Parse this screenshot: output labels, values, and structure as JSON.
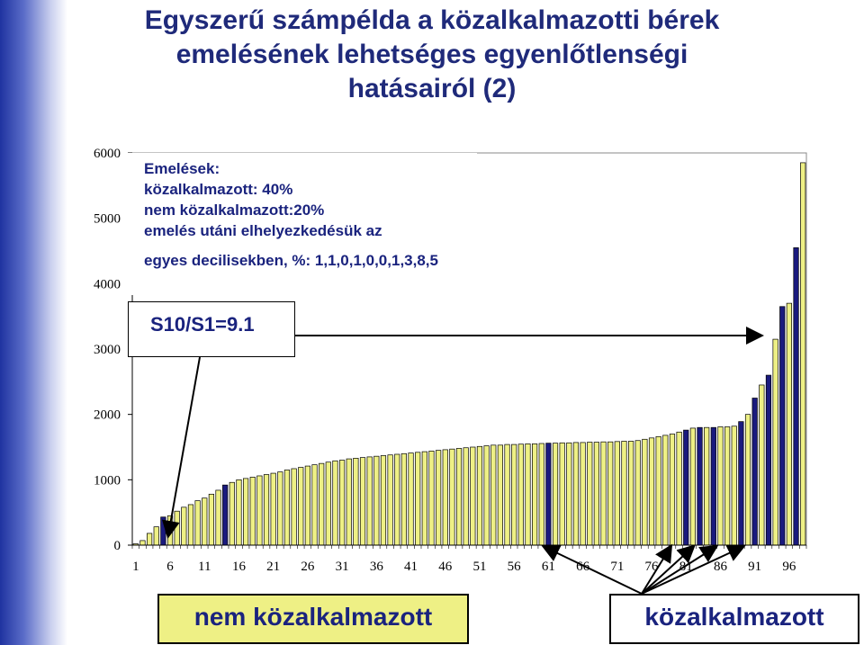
{
  "title_lines": [
    "Egyszerű számpélda a közalkalmazotti bérek",
    "emelésének lehetséges egyenlőtlenségi",
    "hatásairól (2)"
  ],
  "annotation_lines": [
    "Emelések:",
    "közalkalmazott: 40%",
    "nem közalkalmazott:20%",
    "emelés utáni elhelyezkedésük az",
    "egyes decilisekben, %: 1,1,0,1,0,0,1,3,8,5"
  ],
  "ratio_text": "S10/S1=9.1",
  "labels": {
    "non_public": "nem közalkalmazott",
    "public": "közalkalmazott"
  },
  "colors": {
    "non_public_fill": "#eef085",
    "public_fill": "#1a1a7e",
    "title": "#1f2a7a"
  },
  "chart_data": {
    "type": "bar",
    "yticks": [
      0,
      1000,
      2000,
      3000,
      4000,
      5000,
      6000
    ],
    "ylim": [
      0,
      6000
    ],
    "xtick_labels": [
      "1",
      "6",
      "11",
      "16",
      "21",
      "26",
      "31",
      "36",
      "41",
      "46",
      "51",
      "56",
      "61",
      "66",
      "71",
      "76",
      "81",
      "86",
      "91",
      "96"
    ],
    "series": [
      {
        "values": [
          20,
          70,
          180,
          280,
          430,
          450,
          520,
          580,
          620,
          680,
          720,
          780,
          840,
          920,
          960,
          1000,
          1020,
          1040,
          1060,
          1080,
          1100,
          1120,
          1150,
          1170,
          1190,
          1210,
          1230,
          1250,
          1270,
          1290,
          1300,
          1320,
          1330,
          1340,
          1350,
          1360,
          1370,
          1380,
          1390,
          1400,
          1410,
          1420,
          1430,
          1440,
          1450,
          1460,
          1470,
          1480,
          1490,
          1500,
          1510,
          1520,
          1530,
          1530,
          1540,
          1540,
          1545,
          1550,
          1550,
          1555,
          1560,
          1560,
          1565,
          1565,
          1570,
          1570,
          1575,
          1575,
          1580,
          1580,
          1585,
          1590,
          1590,
          1600,
          1620,
          1640,
          1660,
          1680,
          1700,
          1730,
          1760,
          1790,
          1800,
          1800,
          1800,
          1810,
          1810,
          1820,
          1890,
          2000,
          2250,
          2450,
          2600,
          3150,
          3650,
          3700,
          4550,
          5850
        ],
        "groups": [
          "N",
          "N",
          "N",
          "N",
          "P",
          "N",
          "N",
          "N",
          "N",
          "N",
          "N",
          "N",
          "N",
          "P",
          "N",
          "N",
          "N",
          "N",
          "N",
          "N",
          "N",
          "N",
          "N",
          "N",
          "N",
          "N",
          "N",
          "N",
          "N",
          "N",
          "N",
          "N",
          "N",
          "N",
          "N",
          "N",
          "N",
          "N",
          "N",
          "N",
          "N",
          "N",
          "N",
          "N",
          "N",
          "N",
          "N",
          "N",
          "N",
          "N",
          "N",
          "N",
          "N",
          "N",
          "N",
          "N",
          "N",
          "N",
          "N",
          "N",
          "P",
          "N",
          "N",
          "N",
          "N",
          "N",
          "N",
          "N",
          "N",
          "N",
          "N",
          "N",
          "N",
          "N",
          "N",
          "N",
          "N",
          "N",
          "N",
          "N",
          "P",
          "N",
          "P",
          "N",
          "P",
          "N",
          "N",
          "N",
          "P",
          "N",
          "P",
          "N",
          "P",
          "N",
          "P",
          "N",
          "P",
          "N"
        ]
      }
    ]
  }
}
